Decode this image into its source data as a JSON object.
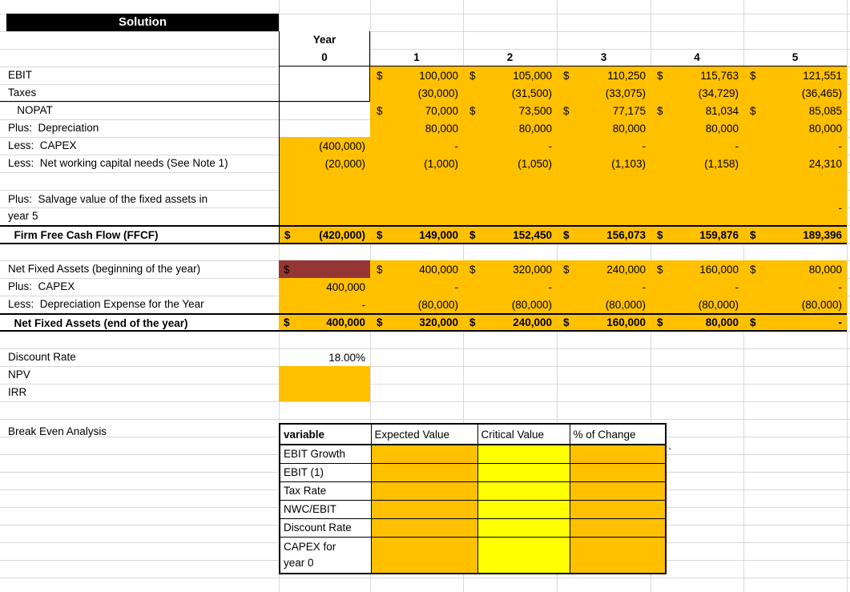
{
  "sheet": {
    "title": "Solution",
    "year_label": "Year",
    "year_cols": [
      "0",
      "1",
      "2",
      "3",
      "4",
      "5"
    ],
    "cashflow_rows": [
      {
        "label": "EBIT",
        "cells": [
          null,
          {
            "c": "$",
            "v": "100,000"
          },
          {
            "c": "$",
            "v": "105,000"
          },
          {
            "c": "$",
            "v": "110,250"
          },
          {
            "c": "$",
            "v": "115,763"
          },
          {
            "c": "$",
            "v": "121,551"
          }
        ]
      },
      {
        "label": "Taxes",
        "cells": [
          null,
          {
            "v": "(30,000)"
          },
          {
            "v": "(31,500)"
          },
          {
            "v": "(33,075)"
          },
          {
            "v": "(34,729)"
          },
          {
            "v": "(36,465)"
          }
        ]
      },
      {
        "label": "   NOPAT",
        "cells": [
          null,
          {
            "c": "$",
            "v": "70,000"
          },
          {
            "c": "$",
            "v": "73,500"
          },
          {
            "c": "$",
            "v": "77,175"
          },
          {
            "c": "$",
            "v": "81,034"
          },
          {
            "c": "$",
            "v": "85,085"
          }
        ]
      },
      {
        "label": "Plus:  Depreciation",
        "cells": [
          null,
          {
            "v": "80,000"
          },
          {
            "v": "80,000"
          },
          {
            "v": "80,000"
          },
          {
            "v": "80,000"
          },
          {
            "v": "80,000"
          }
        ]
      },
      {
        "label": "Less:  CAPEX",
        "cells": [
          {
            "v": "(400,000)"
          },
          {
            "v": "-"
          },
          {
            "v": "-"
          },
          {
            "v": "-"
          },
          {
            "v": "-"
          },
          {
            "v": "-"
          }
        ]
      },
      {
        "label": "Less:  Net working capital needs (See Note 1)",
        "cells": [
          {
            "v": "(20,000)"
          },
          {
            "v": "(1,000)"
          },
          {
            "v": "(1,050)"
          },
          {
            "v": "(1,103)"
          },
          {
            "v": "(1,158)"
          },
          {
            "v": "24,310"
          }
        ]
      },
      {
        "label": "",
        "cells": [
          null,
          null,
          null,
          null,
          null,
          null
        ]
      },
      {
        "label": "Plus:  Salvage value of the fixed assets in",
        "label2": "year 5",
        "cells": [
          null,
          null,
          null,
          null,
          null,
          {
            "v": "-"
          }
        ]
      },
      {
        "label": "  Firm Free Cash Flow (FFCF)",
        "cells": [
          {
            "c": "$",
            "v": "(420,000)"
          },
          {
            "c": "$",
            "v": "149,000"
          },
          {
            "c": "$",
            "v": "152,450"
          },
          {
            "c": "$",
            "v": "156,073"
          },
          {
            "c": "$",
            "v": "159,876"
          },
          {
            "c": "$",
            "v": "189,396"
          }
        ]
      }
    ],
    "nfa_rows": [
      {
        "label": "Net Fixed Assets (beginning of the year)",
        "cells": [
          {
            "c": "$",
            "v": ""
          },
          {
            "c": "$",
            "v": "400,000"
          },
          {
            "c": "$",
            "v": "320,000"
          },
          {
            "c": "$",
            "v": "240,000"
          },
          {
            "c": "$",
            "v": "160,000"
          },
          {
            "c": "$",
            "v": "80,000"
          }
        ]
      },
      {
        "label": "Plus:  CAPEX",
        "cells": [
          {
            "v": "400,000"
          },
          {
            "v": "-"
          },
          {
            "v": "-"
          },
          {
            "v": "-"
          },
          {
            "v": "-"
          },
          {
            "v": "-"
          }
        ]
      },
      {
        "label": "Less:  Depreciation Expense for the Year",
        "cells": [
          {
            "v": "-"
          },
          {
            "v": "(80,000)"
          },
          {
            "v": "(80,000)"
          },
          {
            "v": "(80,000)"
          },
          {
            "v": "(80,000)"
          },
          {
            "v": "(80,000)"
          }
        ]
      },
      {
        "label": "  Net Fixed Assets (end of the year)",
        "cells": [
          {
            "c": "$",
            "v": "400,000"
          },
          {
            "c": "$",
            "v": "320,000"
          },
          {
            "c": "$",
            "v": "240,000"
          },
          {
            "c": "$",
            "v": "160,000"
          },
          {
            "c": "$",
            "v": "80,000"
          },
          {
            "c": "$",
            "v": "-"
          }
        ]
      }
    ],
    "metrics": {
      "discount_rate_label": "Discount Rate",
      "discount_rate_value": "18.00%",
      "npv_label": "NPV",
      "irr_label": "IRR"
    },
    "break_even": {
      "section_label": "Break Even Analysis",
      "headers": [
        "variable",
        "Expected Value",
        "Critical Value",
        "% of Change"
      ],
      "rows": [
        {
          "label": "EBIT Growth"
        },
        {
          "label": "EBIT (1)"
        },
        {
          "label": "Tax Rate"
        },
        {
          "label": "NWC/EBIT"
        },
        {
          "label": "Discount Rate"
        },
        {
          "label": "CAPEX for",
          "label2": "year 0"
        }
      ]
    },
    "misc": {
      "stray_mark": "`"
    },
    "colors": {
      "fill_orange": "#FFC000",
      "fill_yellow": "#FFFF00",
      "fill_dark_red": "#963634",
      "header_bg": "#000000"
    }
  }
}
